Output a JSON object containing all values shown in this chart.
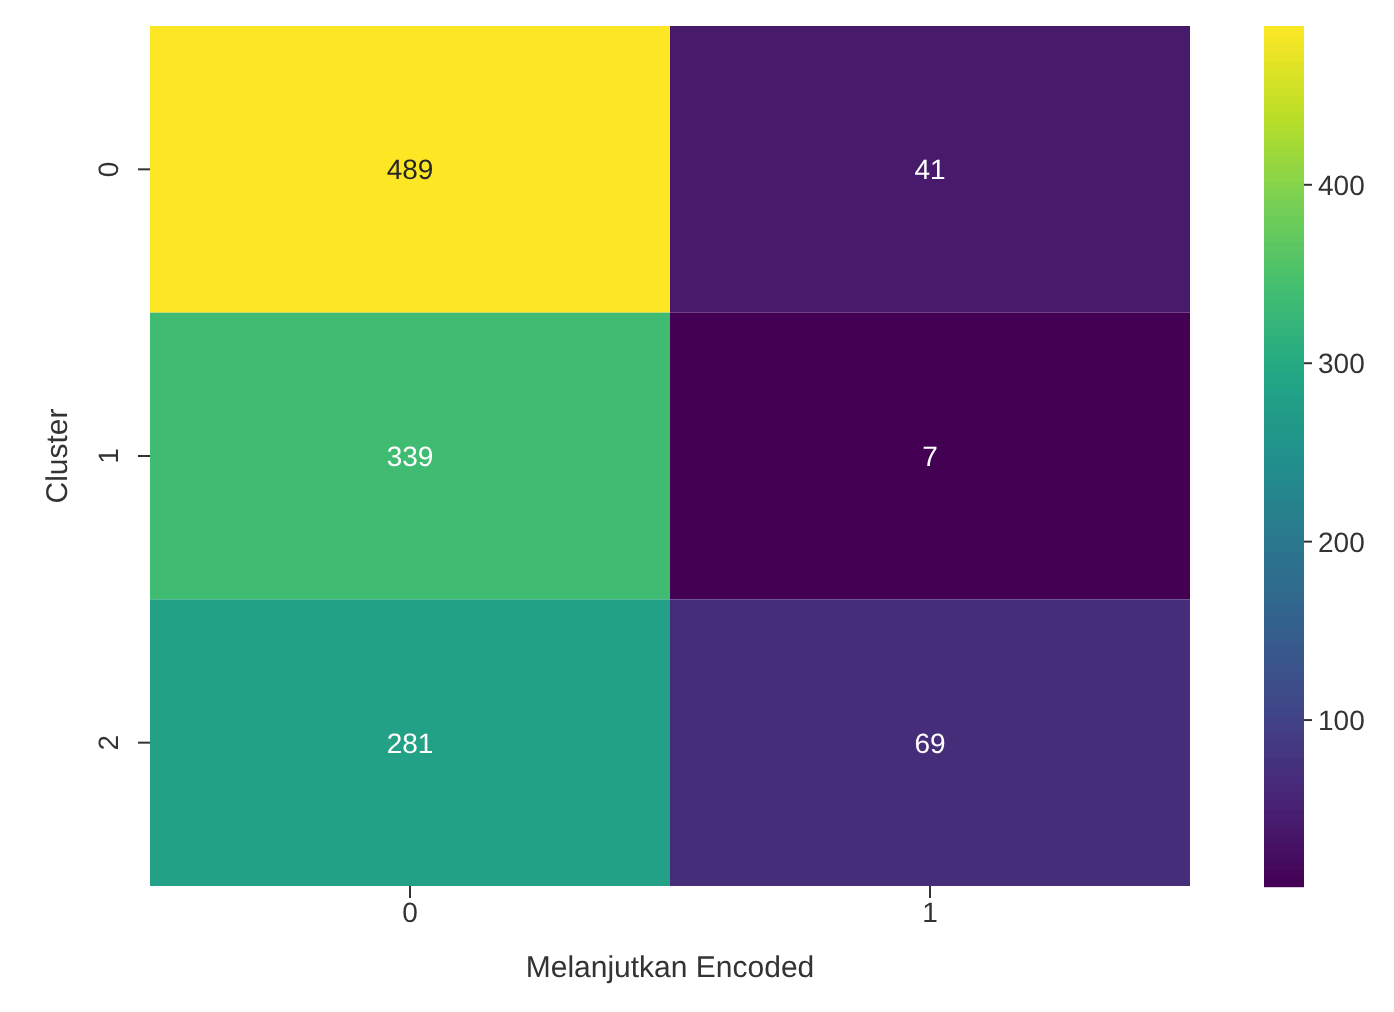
{
  "chart_data": {
    "type": "heatmap",
    "xlabel": "Melanjutkan Encoded",
    "ylabel": "Cluster",
    "categories": [
      "0",
      "1"
    ],
    "y_categories": [
      "0",
      "1",
      "2"
    ],
    "cells": [
      [
        489,
        41
      ],
      [
        339,
        7
      ],
      [
        281,
        69
      ]
    ],
    "clim": [
      7,
      489
    ],
    "cticks": [
      100,
      200,
      300,
      400
    ],
    "data_labels": true
  }
}
